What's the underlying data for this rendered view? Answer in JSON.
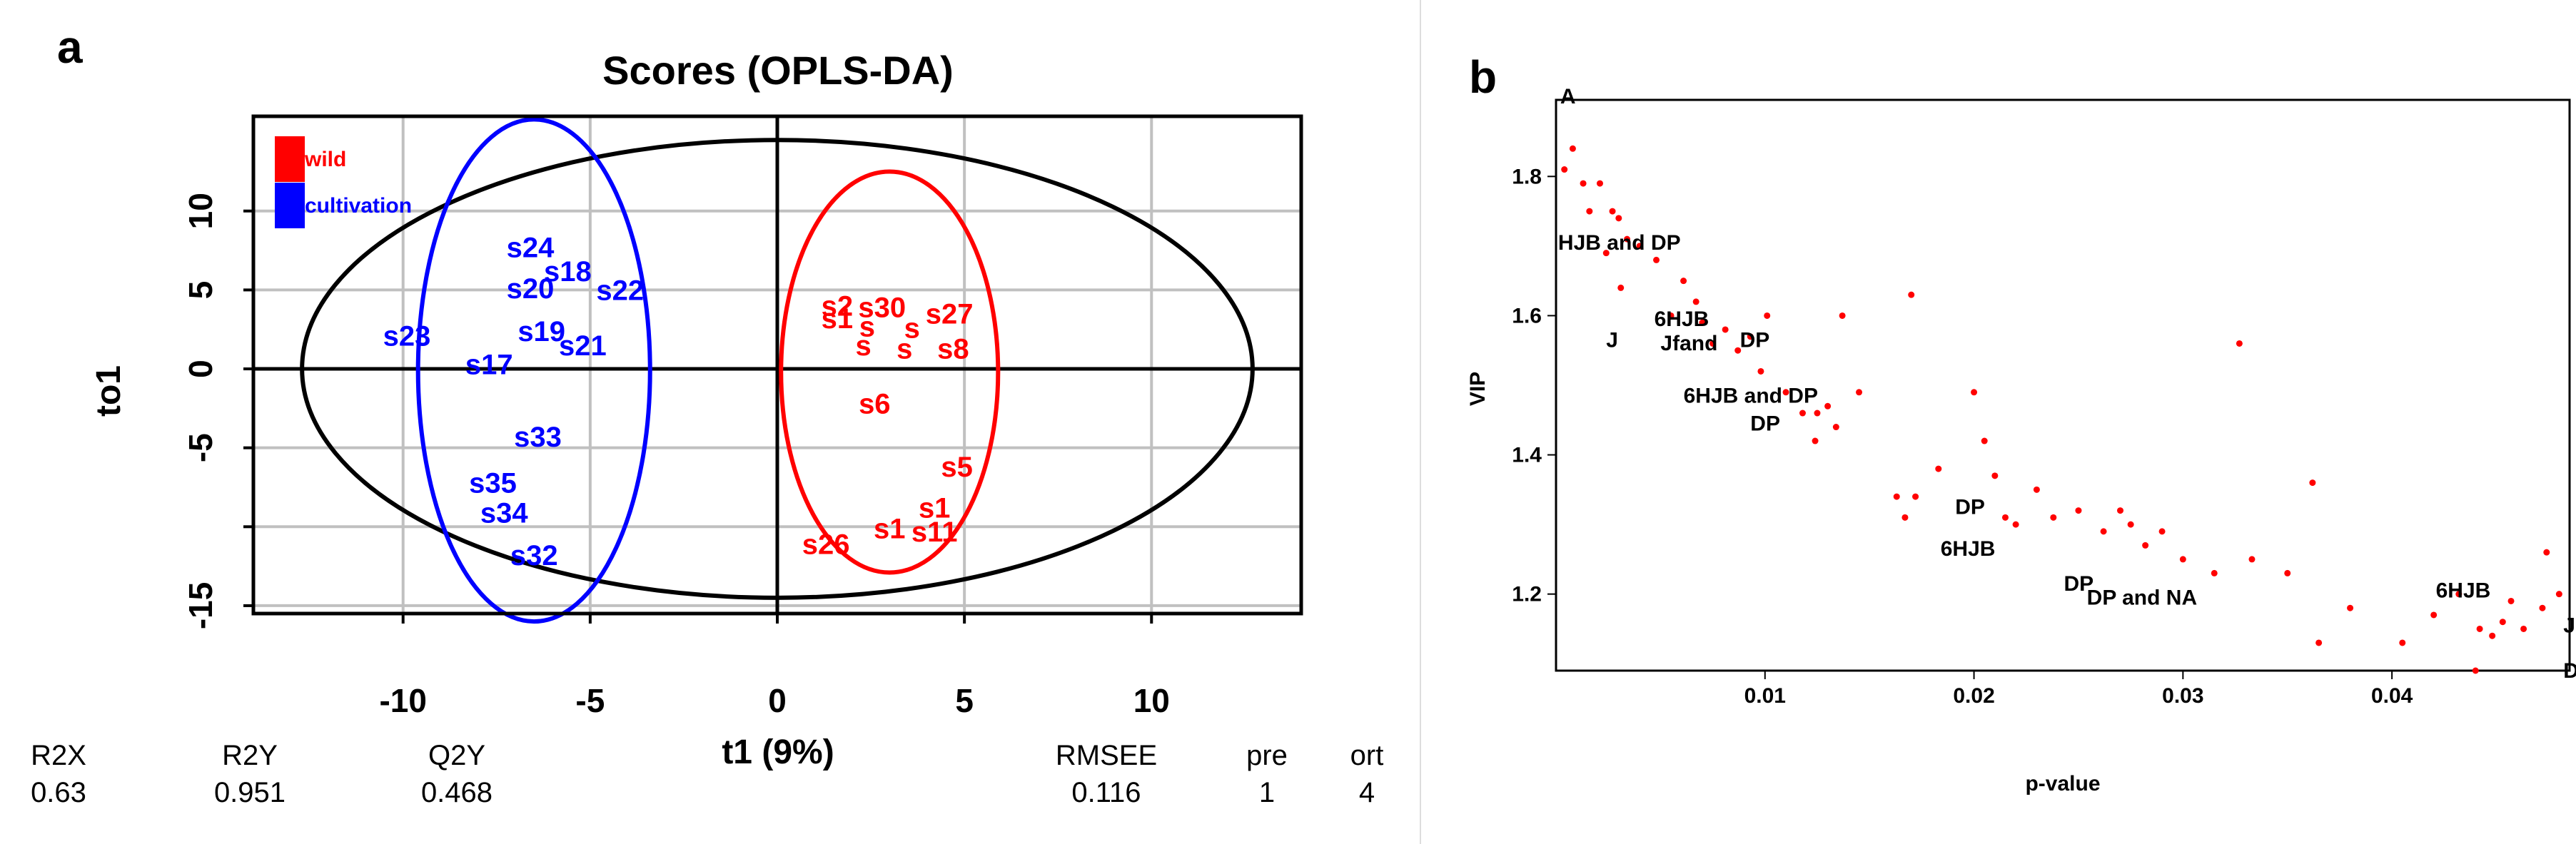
{
  "panel_a_letter": "a",
  "panel_b_letter": "b",
  "chart_data": [
    {
      "type": "scatter",
      "title": "Scores (OPLS-DA)",
      "xlabel": "t1 (9%)",
      "ylabel": "to1",
      "xlim": [
        -14,
        14
      ],
      "ylim": [
        -15.5,
        16
      ],
      "x_ticks": [
        -10,
        -5,
        0,
        5,
        10
      ],
      "y_ticks": [
        -15,
        -10,
        -5,
        0,
        5,
        10
      ],
      "y_tick_labels": [
        "-15",
        "",
        "-5",
        "0",
        "5",
        "10"
      ],
      "grid": true,
      "legend": [
        {
          "label": "wild",
          "color": "#ff0000"
        },
        {
          "label": "cultivation",
          "color": "#0000ff"
        }
      ],
      "series": [
        {
          "name": "wild",
          "color": "#ff0000",
          "points": [
            {
              "label": "s2",
              "x": 1.6,
              "y": 4.0
            },
            {
              "label": "s30",
              "x": 2.8,
              "y": 3.9
            },
            {
              "label": "s27",
              "x": 4.6,
              "y": 3.5
            },
            {
              "label": "s1",
              "x": 1.6,
              "y": 3.2
            },
            {
              "label": "s",
              "x": 2.4,
              "y": 2.7
            },
            {
              "label": "s",
              "x": 3.6,
              "y": 2.6
            },
            {
              "label": "s",
              "x": 2.3,
              "y": 1.5
            },
            {
              "label": "s",
              "x": 3.4,
              "y": 1.3
            },
            {
              "label": "s8",
              "x": 4.7,
              "y": 1.3
            },
            {
              "label": "s6",
              "x": 2.6,
              "y": -2.2
            },
            {
              "label": "s5",
              "x": 4.8,
              "y": -6.2
            },
            {
              "label": "s1",
              "x": 4.2,
              "y": -8.8
            },
            {
              "label": "s1",
              "x": 3.0,
              "y": -10.1
            },
            {
              "label": "s11",
              "x": 4.2,
              "y": -10.3
            },
            {
              "label": "s26",
              "x": 1.3,
              "y": -11.1
            }
          ]
        },
        {
          "name": "cultivation",
          "color": "#0000ff",
          "points": [
            {
              "label": "s24",
              "x": -6.6,
              "y": 7.7
            },
            {
              "label": "s18",
              "x": -5.6,
              "y": 6.2
            },
            {
              "label": "s20",
              "x": -6.6,
              "y": 5.1
            },
            {
              "label": "s22",
              "x": -4.2,
              "y": 5.0
            },
            {
              "label": "s19",
              "x": -6.3,
              "y": 2.4
            },
            {
              "label": "s23",
              "x": -9.9,
              "y": 2.1
            },
            {
              "label": "s21",
              "x": -5.2,
              "y": 1.5
            },
            {
              "label": "s17",
              "x": -7.7,
              "y": 0.3
            },
            {
              "label": "s33",
              "x": -6.4,
              "y": -4.3
            },
            {
              "label": "s35",
              "x": -7.6,
              "y": -7.2
            },
            {
              "label": "s34",
              "x": -7.3,
              "y": -9.1
            },
            {
              "label": "s32",
              "x": -6.5,
              "y": -11.8
            }
          ]
        }
      ],
      "ellipses": [
        {
          "name": "overall",
          "color": "#000000",
          "cx": 0,
          "cy": 0,
          "rx": 12.7,
          "ry": 14.5
        },
        {
          "name": "cultivation",
          "color": "#0000ff",
          "cx": -6.5,
          "cy": -0.1,
          "rx": 3.1,
          "ry": 15.9
        },
        {
          "name": "wild",
          "color": "#ff0000",
          "cx": 3.0,
          "cy": -0.2,
          "rx": 2.9,
          "ry": 12.7
        }
      ],
      "stats": [
        {
          "label": "R2X",
          "value": "0.63"
        },
        {
          "label": "R2Y",
          "value": "0.951"
        },
        {
          "label": "Q2Y",
          "value": "0.468"
        },
        {
          "label": "RMSEE",
          "value": "0.116"
        },
        {
          "label": "pre",
          "value": "1"
        },
        {
          "label": "ort",
          "value": "4"
        }
      ]
    },
    {
      "type": "scatter",
      "title": "",
      "xlabel": "p-value",
      "ylabel": "VIP",
      "xlim": [
        0,
        0.0485
      ],
      "ylim": [
        1.09,
        1.91
      ],
      "x_ticks": [
        "0.01",
        "0.02",
        "0.03",
        "0.04"
      ],
      "y_ticks": [
        "1.2",
        "1.4",
        "1.6",
        "1.8"
      ],
      "point_color": "#ff0000",
      "points": [
        [
          0.0004,
          1.81
        ],
        [
          0.0008,
          1.84
        ],
        [
          0.0013,
          1.79
        ],
        [
          0.0016,
          1.75
        ],
        [
          0.0021,
          1.79
        ],
        [
          0.0027,
          1.75
        ],
        [
          0.003,
          1.74
        ],
        [
          0.0034,
          1.71
        ],
        [
          0.0024,
          1.69
        ],
        [
          0.0031,
          1.64
        ],
        [
          0.004,
          1.7
        ],
        [
          0.0048,
          1.68
        ],
        [
          0.0061,
          1.65
        ],
        [
          0.0055,
          1.6
        ],
        [
          0.0067,
          1.62
        ],
        [
          0.007,
          1.59
        ],
        [
          0.0075,
          1.56
        ],
        [
          0.0081,
          1.58
        ],
        [
          0.0087,
          1.55
        ],
        [
          0.0093,
          1.57
        ],
        [
          0.0098,
          1.52
        ],
        [
          0.0101,
          1.6
        ],
        [
          0.011,
          1.49
        ],
        [
          0.0118,
          1.46
        ],
        [
          0.0125,
          1.46
        ],
        [
          0.013,
          1.47
        ],
        [
          0.0134,
          1.44
        ],
        [
          0.0124,
          1.42
        ],
        [
          0.0137,
          1.6
        ],
        [
          0.0145,
          1.49
        ],
        [
          0.017,
          1.63
        ],
        [
          0.0163,
          1.34
        ],
        [
          0.0167,
          1.31
        ],
        [
          0.0172,
          1.34
        ],
        [
          0.0183,
          1.38
        ],
        [
          0.02,
          1.49
        ],
        [
          0.0205,
          1.42
        ],
        [
          0.021,
          1.37
        ],
        [
          0.0215,
          1.31
        ],
        [
          0.022,
          1.3
        ],
        [
          0.023,
          1.35
        ],
        [
          0.0238,
          1.31
        ],
        [
          0.025,
          1.32
        ],
        [
          0.0262,
          1.29
        ],
        [
          0.027,
          1.32
        ],
        [
          0.0275,
          1.3
        ],
        [
          0.0282,
          1.27
        ],
        [
          0.029,
          1.29
        ],
        [
          0.03,
          1.25
        ],
        [
          0.0315,
          1.23
        ],
        [
          0.0327,
          1.56
        ],
        [
          0.0333,
          1.25
        ],
        [
          0.035,
          1.23
        ],
        [
          0.0362,
          1.36
        ],
        [
          0.0365,
          1.13
        ],
        [
          0.038,
          1.18
        ],
        [
          0.0405,
          1.13
        ],
        [
          0.042,
          1.17
        ],
        [
          0.0432,
          1.2
        ],
        [
          0.044,
          1.09
        ],
        [
          0.0442,
          1.15
        ],
        [
          0.0448,
          1.14
        ],
        [
          0.0453,
          1.16
        ],
        [
          0.0457,
          1.19
        ],
        [
          0.0463,
          1.15
        ],
        [
          0.0472,
          1.18
        ],
        [
          0.0474,
          1.26
        ],
        [
          0.048,
          1.2
        ]
      ],
      "annotations": [
        {
          "text": "A",
          "x": 0.0002,
          "y": 1.905
        },
        {
          "text": "HJB and DP",
          "x": 0.0001,
          "y": 1.695
        },
        {
          "text": "6HJB",
          "x": 0.0047,
          "y": 1.585
        },
        {
          "text": "J",
          "x": 0.0024,
          "y": 1.555
        },
        {
          "text": "Jfand",
          "x": 0.005,
          "y": 1.55
        },
        {
          "text": "DP",
          "x": 0.0088,
          "y": 1.555
        },
        {
          "text": "6HJB and DP",
          "x": 0.0061,
          "y": 1.475
        },
        {
          "text": "DP",
          "x": 0.0093,
          "y": 1.435
        },
        {
          "text": "DP",
          "x": 0.0191,
          "y": 1.315
        },
        {
          "text": "6HJB",
          "x": 0.0184,
          "y": 1.255
        },
        {
          "text": "DP",
          "x": 0.0243,
          "y": 1.205
        },
        {
          "text": "DP and NA",
          "x": 0.0254,
          "y": 1.185
        },
        {
          "text": "6HJB",
          "x": 0.0421,
          "y": 1.195
        },
        {
          "text": "J",
          "x": 0.0482,
          "y": 1.145
        },
        {
          "text": "D",
          "x": 0.0482,
          "y": 1.08
        }
      ]
    }
  ]
}
